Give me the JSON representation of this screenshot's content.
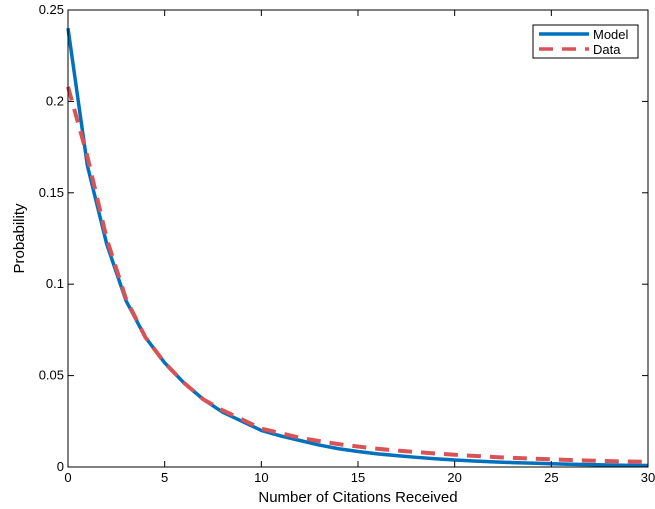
{
  "chart_data": {
    "type": "line",
    "xlabel": "Number of Citations Received",
    "ylabel": "Probability",
    "xlim": [
      0,
      30
    ],
    "ylim": [
      0,
      0.25
    ],
    "xticks": [
      0,
      5,
      10,
      15,
      20,
      25,
      30
    ],
    "yticks": [
      0,
      0.05,
      0.1,
      0.15,
      0.2,
      0.25
    ],
    "xtick_labels": [
      "0",
      "5",
      "10",
      "15",
      "20",
      "25",
      "30"
    ],
    "ytick_labels": [
      "0",
      "0.05",
      "0.1",
      "0.15",
      "0.2",
      "0.25"
    ],
    "grid": false,
    "legend_position": "top-right",
    "x": [
      0,
      1,
      2,
      3,
      4,
      5,
      6,
      7,
      8,
      9,
      10,
      11,
      12,
      13,
      14,
      15,
      16,
      17,
      18,
      19,
      20,
      21,
      22,
      23,
      24,
      25,
      26,
      27,
      28,
      29,
      30
    ],
    "series": [
      {
        "name": "Model",
        "color": "#0072BD",
        "style": "solid",
        "values": [
          0.24,
          0.165,
          0.122,
          0.091,
          0.071,
          0.057,
          0.046,
          0.037,
          0.03,
          0.025,
          0.02,
          0.017,
          0.0145,
          0.012,
          0.01,
          0.0085,
          0.0072,
          0.0062,
          0.0053,
          0.0045,
          0.0038,
          0.0033,
          0.0028,
          0.0024,
          0.0021,
          0.0018,
          0.0015,
          0.0013,
          0.0011,
          0.0009,
          0.0008
        ]
      },
      {
        "name": "Data",
        "color": "#D95356",
        "style": "dashed",
        "values": [
          0.208,
          0.17,
          0.125,
          0.092,
          0.071,
          0.057,
          0.046,
          0.037,
          0.031,
          0.026,
          0.021,
          0.0185,
          0.016,
          0.0142,
          0.0125,
          0.0112,
          0.01,
          0.009,
          0.0082,
          0.0074,
          0.0067,
          0.0061,
          0.0055,
          0.005,
          0.0046,
          0.0042,
          0.0038,
          0.0035,
          0.0032,
          0.003,
          0.0028
        ]
      }
    ]
  }
}
